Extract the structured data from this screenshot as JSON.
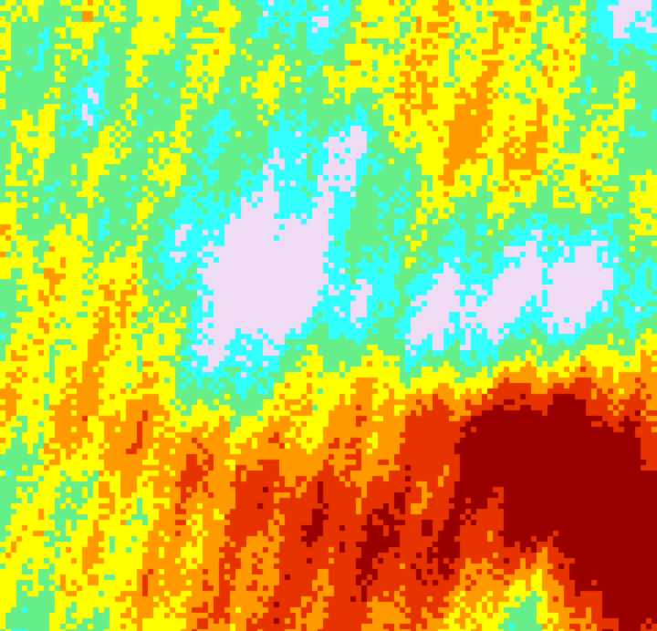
{
  "image": {
    "kind": "false-color heat field",
    "palette": {
      "lavender": "#f0dcf5",
      "cyan": "#33ffff",
      "green": "#66ee88",
      "yellow": "#ffff00",
      "orange": "#ff9900",
      "red": "#e63300",
      "dark_red": "#990000"
    }
  }
}
